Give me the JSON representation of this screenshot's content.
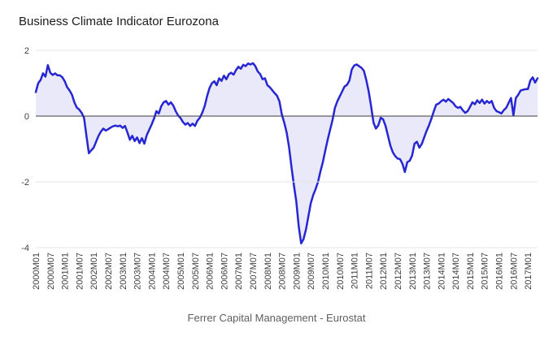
{
  "header": {
    "title": "Business Climate Indicator Eurozona"
  },
  "footer": {
    "caption": "Ferrer Capital Management - Eurostat"
  },
  "chart_data": {
    "type": "area",
    "title": "Business Climate Indicator Eurozona",
    "xlabel": "",
    "ylabel": "",
    "x_start": "2000M01",
    "x_end": "2017M05",
    "frequency": "monthly",
    "ylim": [
      -4,
      2
    ],
    "y_ticks": [
      2,
      0,
      -2,
      -4
    ],
    "grid": true,
    "legend_position": "none",
    "x_tick_labels": [
      "2000M01",
      "2000M07",
      "2001M01",
      "2001M07",
      "2002M01",
      "2002M07",
      "2003M01",
      "2003M07",
      "2004M01",
      "2004M07",
      "2005M01",
      "2005M07",
      "2006M01",
      "2006M07",
      "2007M01",
      "2007M07",
      "2008M01",
      "2008M07",
      "2009M01",
      "2009M07",
      "2010M01",
      "2010M07",
      "2011M01",
      "2011M07",
      "2012M01",
      "2012M07",
      "2013M01",
      "2013M07",
      "2014M01",
      "2014M07",
      "2015M01",
      "2015M07",
      "2016M01",
      "2016M07",
      "2017M01"
    ],
    "values": [
      0.73,
      1.0,
      1.1,
      1.3,
      1.2,
      1.55,
      1.32,
      1.25,
      1.3,
      1.24,
      1.24,
      1.18,
      1.06,
      0.88,
      0.78,
      0.65,
      0.42,
      0.26,
      0.2,
      0.1,
      -0.05,
      -0.6,
      -1.13,
      -1.04,
      -0.96,
      -0.78,
      -0.6,
      -0.47,
      -0.38,
      -0.44,
      -0.4,
      -0.35,
      -0.31,
      -0.29,
      -0.31,
      -0.29,
      -0.36,
      -0.3,
      -0.5,
      -0.72,
      -0.6,
      -0.76,
      -0.65,
      -0.82,
      -0.67,
      -0.84,
      -0.58,
      -0.42,
      -0.26,
      -0.08,
      0.15,
      0.08,
      0.3,
      0.42,
      0.46,
      0.35,
      0.42,
      0.32,
      0.15,
      0.02,
      -0.06,
      -0.18,
      -0.26,
      -0.21,
      -0.3,
      -0.23,
      -0.3,
      -0.14,
      -0.05,
      0.1,
      0.3,
      0.6,
      0.85,
      1.0,
      1.06,
      0.94,
      1.15,
      1.07,
      1.23,
      1.12,
      1.27,
      1.32,
      1.26,
      1.4,
      1.5,
      1.44,
      1.56,
      1.52,
      1.6,
      1.57,
      1.61,
      1.52,
      1.36,
      1.28,
      1.12,
      1.15,
      0.94,
      0.88,
      0.79,
      0.7,
      0.62,
      0.45,
      0.05,
      -0.2,
      -0.5,
      -0.95,
      -1.55,
      -2.1,
      -2.6,
      -3.35,
      -3.87,
      -3.74,
      -3.45,
      -3.05,
      -2.65,
      -2.4,
      -2.22,
      -2.0,
      -1.68,
      -1.4,
      -1.05,
      -0.72,
      -0.42,
      -0.12,
      0.25,
      0.45,
      0.6,
      0.75,
      0.9,
      0.95,
      1.08,
      1.42,
      1.54,
      1.57,
      1.52,
      1.47,
      1.38,
      1.1,
      0.75,
      0.3,
      -0.2,
      -0.38,
      -0.28,
      -0.05,
      -0.1,
      -0.3,
      -0.6,
      -0.9,
      -1.1,
      -1.22,
      -1.29,
      -1.31,
      -1.45,
      -1.7,
      -1.4,
      -1.36,
      -1.2,
      -0.84,
      -0.78,
      -0.96,
      -0.85,
      -0.65,
      -0.45,
      -0.28,
      -0.08,
      0.15,
      0.35,
      0.38,
      0.45,
      0.5,
      0.44,
      0.52,
      0.46,
      0.4,
      0.3,
      0.25,
      0.28,
      0.18,
      0.1,
      0.15,
      0.28,
      0.42,
      0.36,
      0.48,
      0.4,
      0.5,
      0.38,
      0.46,
      0.4,
      0.46,
      0.25,
      0.15,
      0.12,
      0.08,
      0.18,
      0.25,
      0.4,
      0.55,
      0.02,
      0.55,
      0.65,
      0.78,
      0.8,
      0.82,
      0.82,
      1.08,
      1.18,
      1.02,
      1.15
    ],
    "colors": {
      "line": "#2626d2",
      "fill": "rgba(38,38,210,0.10)",
      "grid": "#e6e6e6",
      "zero_axis": "#3d3d3d",
      "axis_text": "#3f3f3f"
    }
  }
}
